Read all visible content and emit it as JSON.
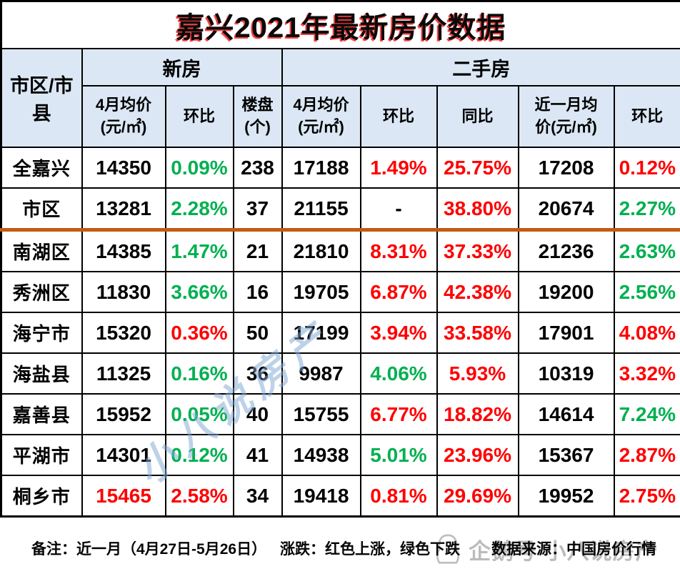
{
  "page": {
    "title": "嘉兴2021年最新房价数据"
  },
  "colors": {
    "up_red": "#fe0000",
    "down_green": "#00b050",
    "header_bg": "#dbe7f4",
    "divider_orange": "#c55a11",
    "watermark_blue": "rgba(128,168,212,0.52)",
    "watermark_gray": "#bcbcbc"
  },
  "table": {
    "group_headers": {
      "region": "市区/市县",
      "new_house": "新房",
      "second_hand": "二手房"
    },
    "sub_headers": [
      "4月均价\n(元/㎡)",
      "环比",
      "楼盘\n(个)",
      "4月均价\n(元/㎡)",
      "环比",
      "同比",
      "近一月均\n价(元/㎡)",
      "环比"
    ],
    "divider_after_row_index": 1,
    "rows": [
      {
        "region": "全嘉兴",
        "cells": [
          {
            "v": "14350",
            "c": "k"
          },
          {
            "v": "0.09%",
            "c": "g"
          },
          {
            "v": "238",
            "c": "k"
          },
          {
            "v": "17188",
            "c": "k"
          },
          {
            "v": "1.49%",
            "c": "r"
          },
          {
            "v": "25.75%",
            "c": "r"
          },
          {
            "v": "17208",
            "c": "k"
          },
          {
            "v": "0.12%",
            "c": "r"
          }
        ]
      },
      {
        "region": "市区",
        "cells": [
          {
            "v": "13281",
            "c": "k"
          },
          {
            "v": "2.28%",
            "c": "g"
          },
          {
            "v": "37",
            "c": "k"
          },
          {
            "v": "21155",
            "c": "k"
          },
          {
            "v": "-",
            "c": "k"
          },
          {
            "v": "38.80%",
            "c": "r"
          },
          {
            "v": "20674",
            "c": "k"
          },
          {
            "v": "2.27%",
            "c": "g"
          }
        ]
      },
      {
        "region": "南湖区",
        "cells": [
          {
            "v": "14385",
            "c": "k"
          },
          {
            "v": "1.47%",
            "c": "g"
          },
          {
            "v": "21",
            "c": "k"
          },
          {
            "v": "21810",
            "c": "k"
          },
          {
            "v": "8.31%",
            "c": "r"
          },
          {
            "v": "37.33%",
            "c": "r"
          },
          {
            "v": "21236",
            "c": "k"
          },
          {
            "v": "2.63%",
            "c": "g"
          }
        ]
      },
      {
        "region": "秀洲区",
        "cells": [
          {
            "v": "11830",
            "c": "k"
          },
          {
            "v": "3.66%",
            "c": "g"
          },
          {
            "v": "16",
            "c": "k"
          },
          {
            "v": "19705",
            "c": "k"
          },
          {
            "v": "6.87%",
            "c": "r"
          },
          {
            "v": "42.38%",
            "c": "r"
          },
          {
            "v": "19200",
            "c": "k"
          },
          {
            "v": "2.56%",
            "c": "g"
          }
        ]
      },
      {
        "region": "海宁市",
        "cells": [
          {
            "v": "15320",
            "c": "k"
          },
          {
            "v": "0.36%",
            "c": "r"
          },
          {
            "v": "50",
            "c": "k"
          },
          {
            "v": "17199",
            "c": "k"
          },
          {
            "v": "3.94%",
            "c": "r"
          },
          {
            "v": "33.58%",
            "c": "r"
          },
          {
            "v": "17901",
            "c": "k"
          },
          {
            "v": "4.08%",
            "c": "r"
          }
        ]
      },
      {
        "region": "海盐县",
        "cells": [
          {
            "v": "11325",
            "c": "k"
          },
          {
            "v": "0.16%",
            "c": "g"
          },
          {
            "v": "36",
            "c": "k"
          },
          {
            "v": "9987",
            "c": "k"
          },
          {
            "v": "4.06%",
            "c": "g"
          },
          {
            "v": "5.93%",
            "c": "r"
          },
          {
            "v": "10319",
            "c": "k"
          },
          {
            "v": "3.32%",
            "c": "r"
          }
        ]
      },
      {
        "region": "嘉善县",
        "cells": [
          {
            "v": "15952",
            "c": "k"
          },
          {
            "v": "0.05%",
            "c": "g"
          },
          {
            "v": "40",
            "c": "k"
          },
          {
            "v": "15755",
            "c": "k"
          },
          {
            "v": "6.77%",
            "c": "r"
          },
          {
            "v": "18.82%",
            "c": "r"
          },
          {
            "v": "14614",
            "c": "k"
          },
          {
            "v": "7.24%",
            "c": "g"
          }
        ]
      },
      {
        "region": "平湖市",
        "cells": [
          {
            "v": "14301",
            "c": "k"
          },
          {
            "v": "0.12%",
            "c": "g"
          },
          {
            "v": "41",
            "c": "k"
          },
          {
            "v": "14938",
            "c": "k"
          },
          {
            "v": "5.01%",
            "c": "g"
          },
          {
            "v": "23.96%",
            "c": "r"
          },
          {
            "v": "15367",
            "c": "k"
          },
          {
            "v": "2.87%",
            "c": "r"
          }
        ]
      },
      {
        "region": "桐乡市",
        "cells": [
          {
            "v": "15465",
            "c": "r"
          },
          {
            "v": "2.58%",
            "c": "r"
          },
          {
            "v": "34",
            "c": "k"
          },
          {
            "v": "19418",
            "c": "k"
          },
          {
            "v": "0.81%",
            "c": "r"
          },
          {
            "v": "29.69%",
            "c": "r"
          },
          {
            "v": "19952",
            "c": "k"
          },
          {
            "v": "2.75%",
            "c": "r"
          }
        ]
      }
    ]
  },
  "watermarks": {
    "diagonal_text": "小八说房产",
    "footer_text": "企鹅号 小八说房产"
  },
  "footer": {
    "note": "备注：近一月（4月27日-5月26日）",
    "legend": "涨跌：红色上涨，绿色下跌",
    "source": "数据来源：中国房价行情"
  },
  "chart_data": {
    "type": "table",
    "title": "嘉兴2021年最新房价数据",
    "column_groups": [
      "市区/市县",
      "新房",
      "二手房"
    ],
    "columns": [
      "市区/市县",
      "新房4月均价(元/㎡)",
      "新房环比",
      "楼盘(个)",
      "二手房4月均价(元/㎡)",
      "二手房环比",
      "二手房同比",
      "近一月均价(元/㎡)",
      "近一月环比"
    ],
    "rows": [
      [
        "全嘉兴",
        14350,
        "0.09%",
        238,
        17188,
        "1.49%",
        "25.75%",
        17208,
        "0.12%"
      ],
      [
        "市区",
        13281,
        "2.28%",
        37,
        21155,
        "-",
        "38.80%",
        20674,
        "2.27%"
      ],
      [
        "南湖区",
        14385,
        "1.47%",
        21,
        21810,
        "8.31%",
        "37.33%",
        21236,
        "2.63%"
      ],
      [
        "秀洲区",
        11830,
        "3.66%",
        16,
        19705,
        "6.87%",
        "42.38%",
        19200,
        "2.56%"
      ],
      [
        "海宁市",
        15320,
        "0.36%",
        50,
        17199,
        "3.94%",
        "33.58%",
        17901,
        "4.08%"
      ],
      [
        "海盐县",
        11325,
        "0.16%",
        36,
        9987,
        "4.06%",
        "5.93%",
        10319,
        "3.32%"
      ],
      [
        "嘉善县",
        15952,
        "0.05%",
        40,
        15755,
        "6.77%",
        "18.82%",
        14614,
        "7.24%"
      ],
      [
        "平湖市",
        14301,
        "0.12%",
        41,
        14938,
        "5.01%",
        "23.96%",
        15367,
        "2.87%"
      ],
      [
        "桐乡市",
        15465,
        "2.58%",
        34,
        19418,
        "0.81%",
        "29.69%",
        19952,
        "2.75%"
      ]
    ],
    "cell_color_semantics": "red=上涨(up), green=下跌(down)",
    "notes": [
      "备注：近一月（4月27日-5月26日）",
      "涨跌：红色上涨，绿色下跌",
      "数据来源：中国房价行情"
    ]
  }
}
